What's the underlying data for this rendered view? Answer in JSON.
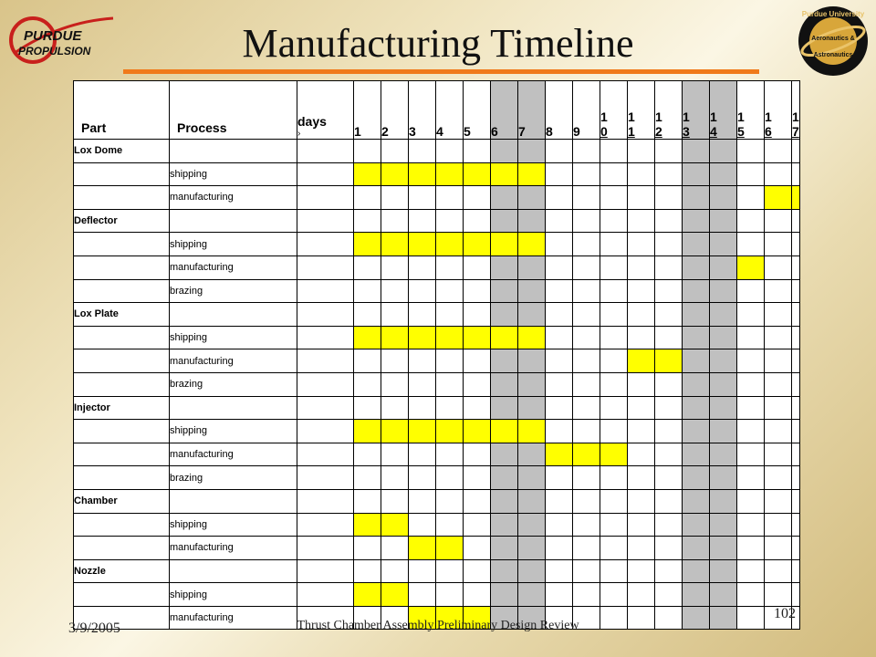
{
  "slide": {
    "title": "Manufacturing Timeline",
    "logo_left_text": [
      "PURDUE",
      "PROPULSION"
    ],
    "logo_right_text": [
      "Purdue University",
      "Aeronautics &",
      "Astronautics"
    ],
    "footer_date": "3/9/2005",
    "footer_center": "Thrust Chamber Assembly Preliminary Design Review",
    "page_number": "102"
  },
  "table": {
    "headers": {
      "part": "Part",
      "process": "Process",
      "days": "days",
      "days_arrow": "›",
      "day_numbers": [
        "1",
        "2",
        "3",
        "4",
        "5",
        "6",
        "7",
        "8",
        "9",
        "10",
        "11",
        "12",
        "13",
        "14",
        "15",
        "16",
        "17"
      ]
    },
    "weekend_days": [
      6,
      7,
      13,
      14
    ],
    "rows": [
      {
        "part": "Lox Dome",
        "process": "",
        "active": []
      },
      {
        "part": "",
        "process": "shipping",
        "active": [
          1,
          2,
          3,
          4,
          5,
          6,
          7
        ]
      },
      {
        "part": "",
        "process": "manufacturing",
        "active": [
          16,
          17
        ]
      },
      {
        "part": "Deflector",
        "process": "",
        "active": []
      },
      {
        "part": "",
        "process": "shipping",
        "active": [
          1,
          2,
          3,
          4,
          5,
          6,
          7
        ]
      },
      {
        "part": "",
        "process": "manufacturing",
        "active": [
          15
        ]
      },
      {
        "part": "",
        "process": "brazing",
        "active": []
      },
      {
        "part": "Lox Plate",
        "process": "",
        "active": []
      },
      {
        "part": "",
        "process": "shipping",
        "active": [
          1,
          2,
          3,
          4,
          5,
          6,
          7
        ]
      },
      {
        "part": "",
        "process": "manufacturing",
        "active": [
          11,
          12
        ]
      },
      {
        "part": "",
        "process": "brazing",
        "active": []
      },
      {
        "part": "Injector",
        "process": "",
        "active": []
      },
      {
        "part": "",
        "process": "shipping",
        "active": [
          1,
          2,
          3,
          4,
          5,
          6,
          7
        ]
      },
      {
        "part": "",
        "process": "manufacturing",
        "active": [
          8,
          9,
          10
        ]
      },
      {
        "part": "",
        "process": "brazing",
        "active": []
      },
      {
        "part": "Chamber",
        "process": "",
        "active": []
      },
      {
        "part": "",
        "process": "shipping",
        "active": [
          1,
          2
        ]
      },
      {
        "part": "",
        "process": "manufacturing",
        "active": [
          3,
          4
        ]
      },
      {
        "part": "Nozzle",
        "process": "",
        "active": []
      },
      {
        "part": "",
        "process": "shipping",
        "active": [
          1,
          2
        ]
      },
      {
        "part": "",
        "process": "manufacturing",
        "active": [
          3,
          4,
          5
        ]
      }
    ]
  }
}
